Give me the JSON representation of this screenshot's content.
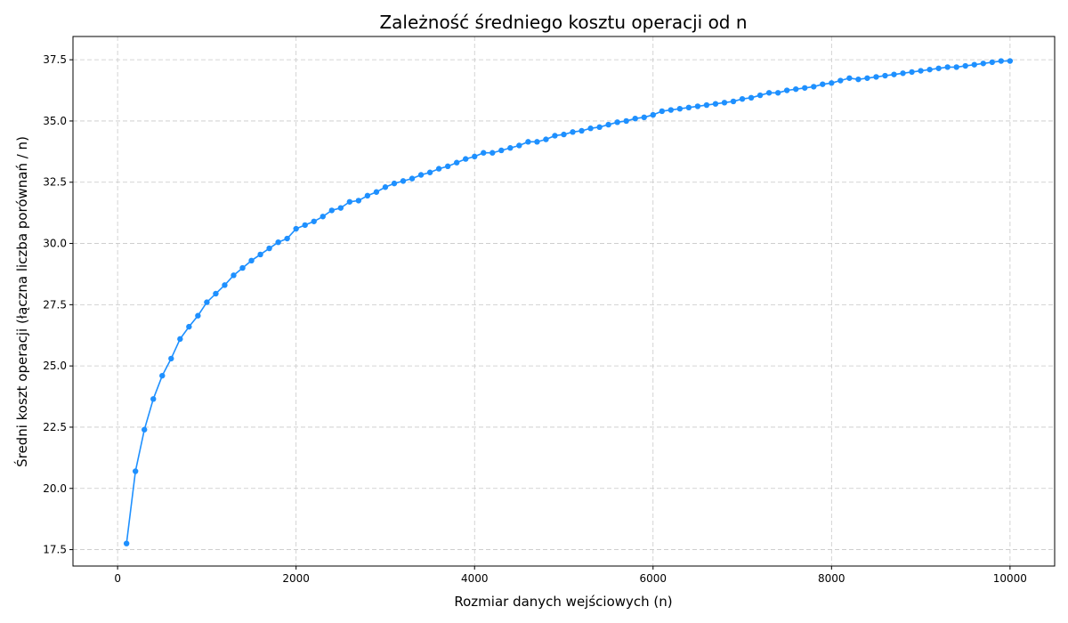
{
  "chart_data": {
    "type": "line",
    "title": "Zależność średniego kosztu operacji od n",
    "xlabel": "Rozmiar danych wejściowych (n)",
    "ylabel": "Średni koszt operacji (łączna liczba porównań / n)",
    "xlim": [
      -500,
      10500
    ],
    "ylim": [
      16.83,
      38.45
    ],
    "xticks": [
      0,
      2000,
      4000,
      6000,
      8000,
      10000
    ],
    "xtick_labels": [
      "0",
      "2000",
      "4000",
      "6000",
      "8000",
      "10000"
    ],
    "yticks": [
      17.5,
      20.0,
      22.5,
      25.0,
      27.5,
      30.0,
      32.5,
      35.0,
      37.5
    ],
    "ytick_labels": [
      "17.5",
      "20.0",
      "22.5",
      "25.0",
      "27.5",
      "30.0",
      "32.5",
      "35.0",
      "37.5"
    ],
    "grid": true,
    "legend": "none",
    "series": [
      {
        "color": "#1e90ff",
        "marker": "circle",
        "x": [
          100,
          200,
          300,
          400,
          500,
          600,
          700,
          800,
          900,
          1000,
          1100,
          1200,
          1300,
          1400,
          1500,
          1600,
          1700,
          1800,
          1900,
          2000,
          2100,
          2200,
          2300,
          2400,
          2500,
          2600,
          2700,
          2800,
          2900,
          3000,
          3100,
          3200,
          3300,
          3400,
          3500,
          3600,
          3700,
          3800,
          3900,
          4000,
          4100,
          4200,
          4300,
          4400,
          4500,
          4600,
          4700,
          4800,
          4900,
          5000,
          5100,
          5200,
          5300,
          5400,
          5500,
          5600,
          5700,
          5800,
          5900,
          6000,
          6100,
          6200,
          6300,
          6400,
          6500,
          6600,
          6700,
          6800,
          6900,
          7000,
          7100,
          7200,
          7300,
          7400,
          7500,
          7600,
          7700,
          7800,
          7900,
          8000,
          8100,
          8200,
          8300,
          8400,
          8500,
          8600,
          8700,
          8800,
          8900,
          9000,
          9100,
          9200,
          9300,
          9400,
          9500,
          9600,
          9700,
          9800,
          9900,
          10000
        ],
        "y": [
          17.75,
          20.7,
          22.4,
          23.65,
          24.6,
          25.3,
          26.1,
          26.6,
          27.05,
          27.6,
          27.95,
          28.3,
          28.7,
          29.0,
          29.3,
          29.55,
          29.8,
          30.05,
          30.2,
          30.6,
          30.75,
          30.9,
          31.1,
          31.35,
          31.45,
          31.7,
          31.75,
          31.95,
          32.1,
          32.3,
          32.45,
          32.55,
          32.65,
          32.8,
          32.9,
          33.05,
          33.15,
          33.3,
          33.45,
          33.55,
          33.7,
          33.7,
          33.8,
          33.9,
          34.0,
          34.15,
          34.15,
          34.25,
          34.4,
          34.45,
          34.55,
          34.6,
          34.7,
          34.75,
          34.85,
          34.95,
          35.0,
          35.1,
          35.15,
          35.25,
          35.4,
          35.45,
          35.5,
          35.55,
          35.6,
          35.65,
          35.7,
          35.75,
          35.8,
          35.9,
          35.95,
          36.05,
          36.15,
          36.15,
          36.25,
          36.3,
          36.35,
          36.4,
          36.5,
          36.55,
          36.65,
          36.75,
          36.7,
          36.75,
          36.8,
          36.85,
          36.9,
          36.95,
          37.0,
          37.05,
          37.1,
          37.15,
          37.2,
          37.2,
          37.25,
          37.3,
          37.35,
          37.4,
          37.45,
          37.45
        ]
      }
    ]
  }
}
